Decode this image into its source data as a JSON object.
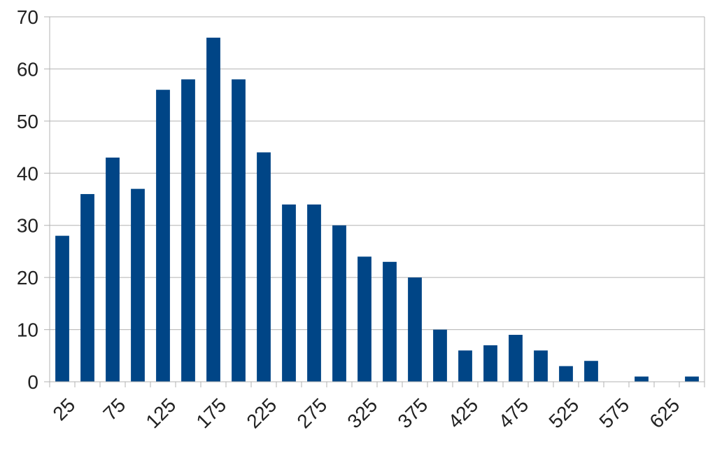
{
  "chart_data": {
    "type": "bar",
    "title": "",
    "xlabel": "",
    "ylabel": "",
    "x_tick_labels": [
      "25",
      "75",
      "125",
      "175",
      "225",
      "275",
      "325",
      "375",
      "425",
      "475",
      "525",
      "575",
      "625"
    ],
    "categories": [
      25,
      50,
      75,
      100,
      125,
      150,
      175,
      200,
      225,
      250,
      275,
      300,
      325,
      350,
      375,
      400,
      425,
      450,
      475,
      500,
      525,
      550,
      575,
      600,
      625,
      650
    ],
    "values": [
      28,
      36,
      43,
      37,
      56,
      58,
      66,
      58,
      44,
      34,
      34,
      30,
      24,
      23,
      20,
      10,
      6,
      7,
      9,
      6,
      3,
      4,
      0,
      1,
      0,
      1
    ],
    "ylim": [
      0,
      70
    ],
    "y_ticks": [
      0,
      10,
      20,
      30,
      40,
      50,
      60,
      70
    ],
    "grid": true,
    "legend": "none",
    "colors": {
      "bar": "#004586",
      "grid": "#b3b3b3",
      "axis": "#b3b3b3"
    }
  }
}
